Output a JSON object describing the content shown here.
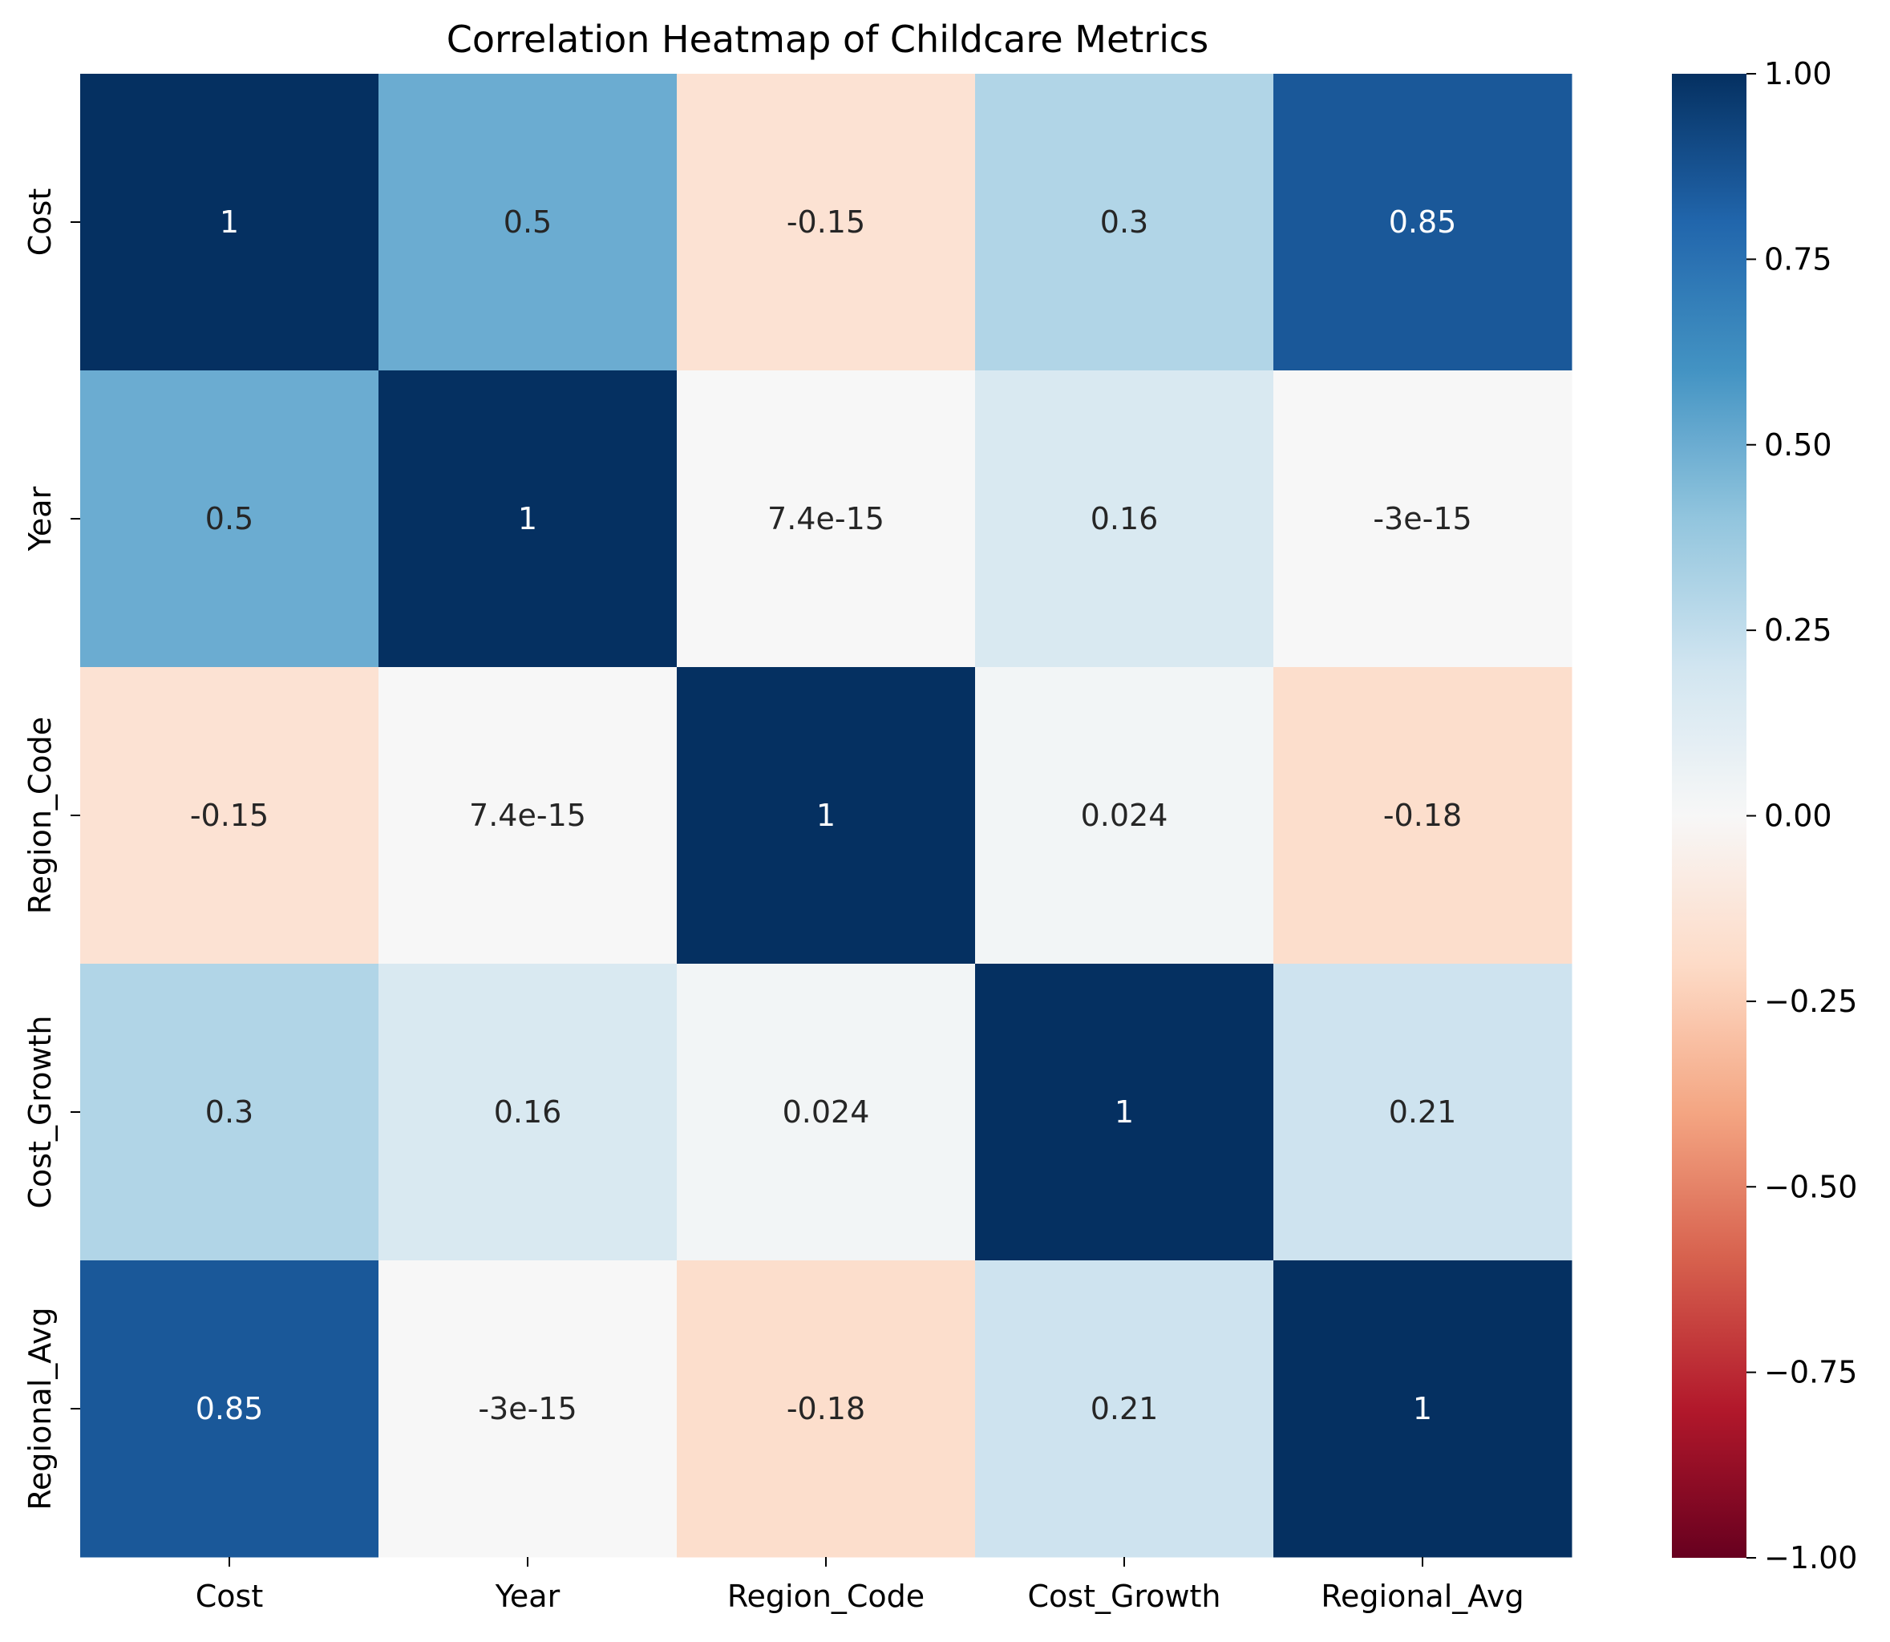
{
  "chart_data": {
    "type": "heatmap",
    "title": "Correlation Heatmap of Childcare Metrics",
    "xlabel": "",
    "ylabel": "",
    "x_categories": [
      "Cost",
      "Year",
      "Region_Code",
      "Cost_Growth",
      "Regional_Avg"
    ],
    "y_categories": [
      "Cost",
      "Year",
      "Region_Code",
      "Cost_Growth",
      "Regional_Avg"
    ],
    "values": [
      [
        1,
        0.5,
        -0.15,
        0.3,
        0.85
      ],
      [
        0.5,
        1,
        7.4e-15,
        0.16,
        -3e-15
      ],
      [
        -0.15,
        7.4e-15,
        1,
        0.024,
        -0.18
      ],
      [
        0.3,
        0.16,
        0.024,
        1,
        0.21
      ],
      [
        0.85,
        -3e-15,
        -0.18,
        0.21,
        1
      ]
    ],
    "annotations": [
      [
        "1",
        "0.5",
        "-0.15",
        "0.3",
        "0.85"
      ],
      [
        "0.5",
        "1",
        "7.4e-15",
        "0.16",
        "-3e-15"
      ],
      [
        "-0.15",
        "7.4e-15",
        "1",
        "0.024",
        "-0.18"
      ],
      [
        "0.3",
        "0.16",
        "0.024",
        "1",
        "0.21"
      ],
      [
        "0.85",
        "-3e-15",
        "-0.18",
        "0.21",
        "1"
      ]
    ],
    "colormap": "RdBu",
    "vmin": -1,
    "vmax": 1,
    "colorbar": {
      "ticks": [
        1.0,
        0.75,
        0.5,
        0.25,
        0.0,
        -0.25,
        -0.5,
        -0.75,
        -1.0
      ],
      "tick_labels": [
        "1.00",
        "0.75",
        "0.50",
        "0.25",
        "0.00",
        "−0.25",
        "−0.50",
        "−0.75",
        "−1.00"
      ]
    }
  }
}
